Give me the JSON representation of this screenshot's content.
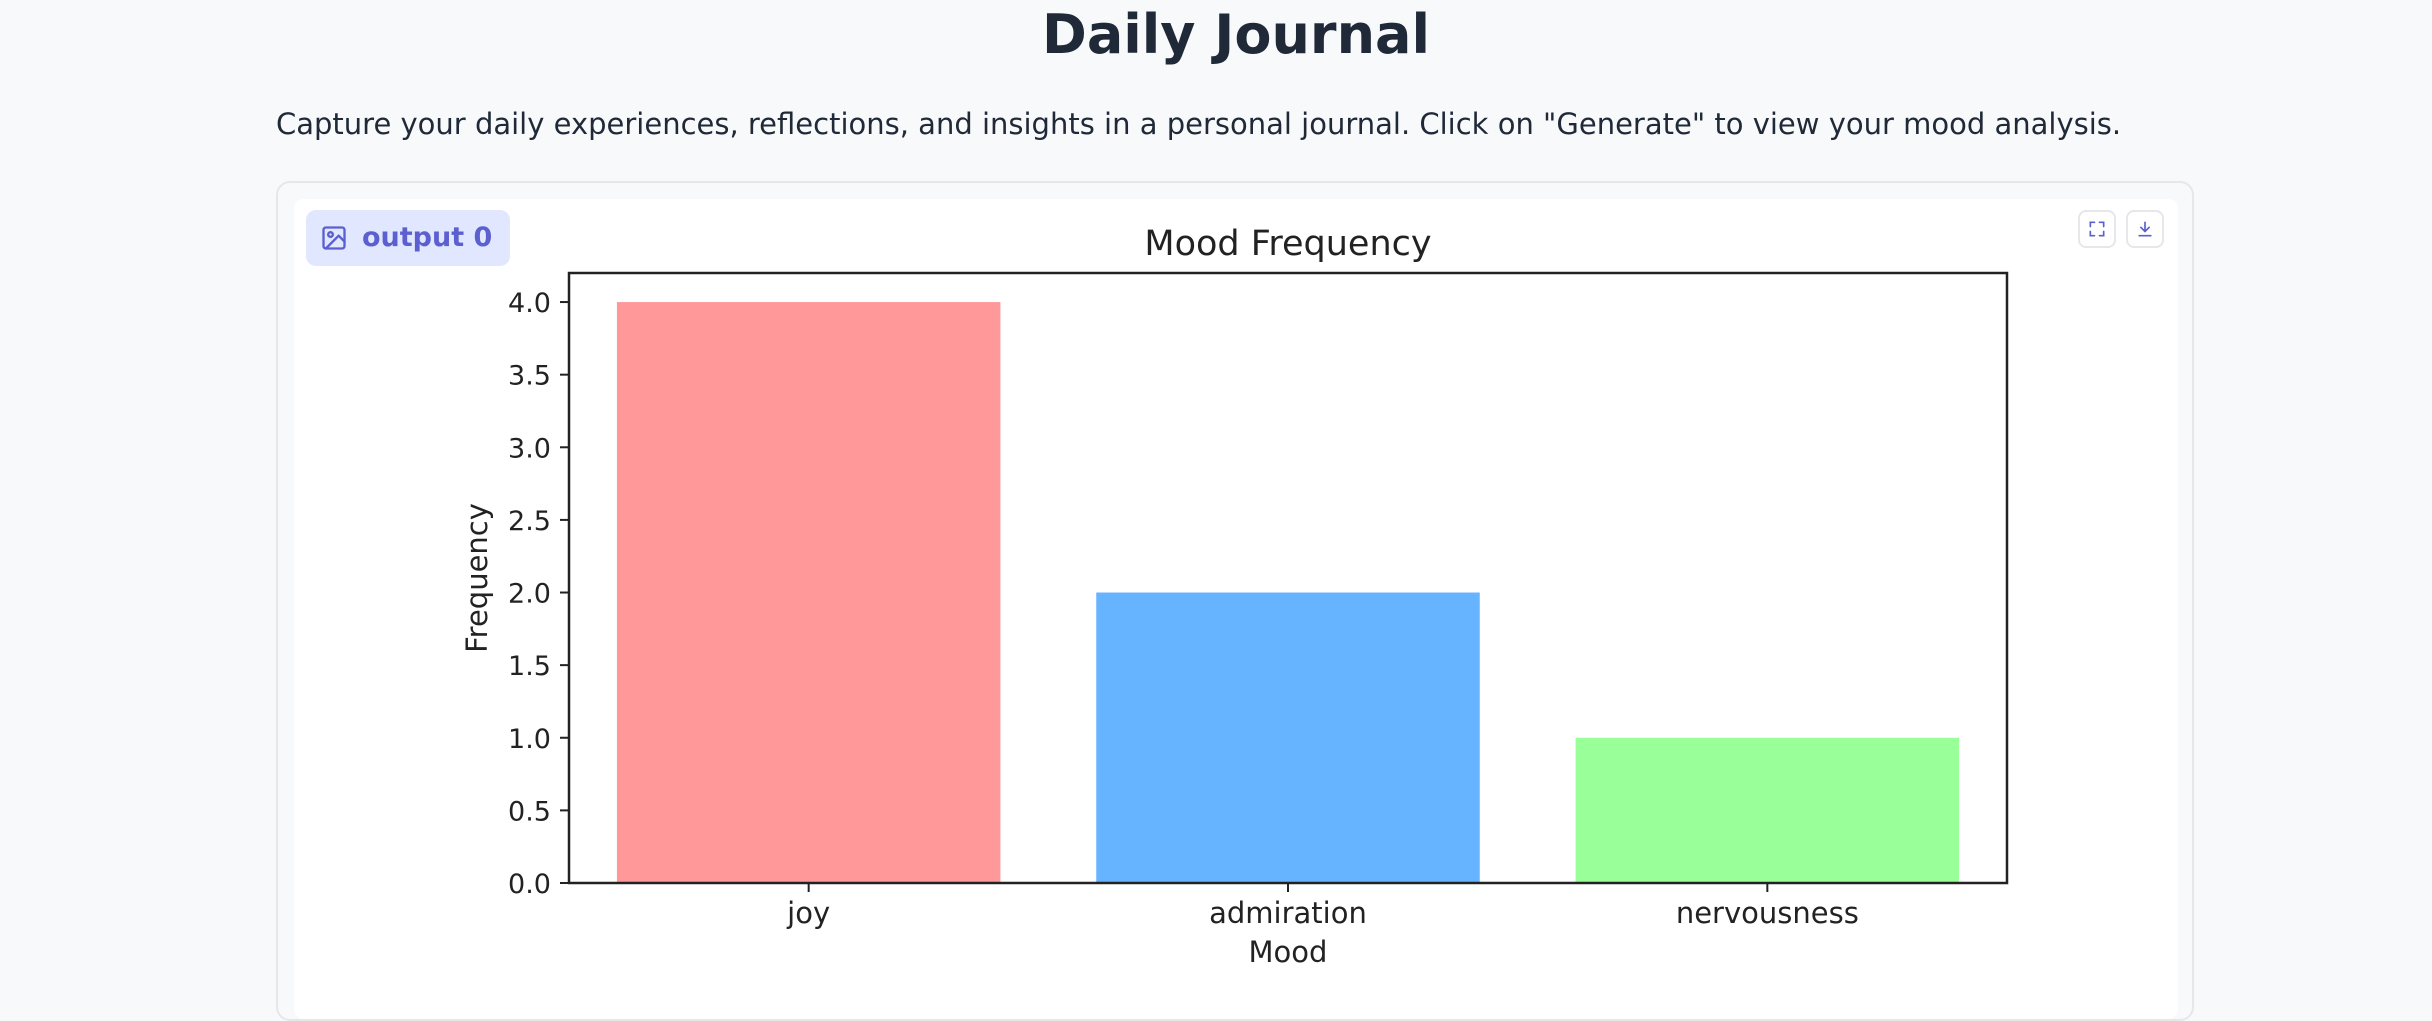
{
  "page": {
    "title": "Daily Journal",
    "description": "Capture your daily experiences, reflections, and insights in a personal journal. Click on \"Generate\" to view your mood analysis."
  },
  "output": {
    "label": "output 0",
    "label_icon": "image-icon",
    "tools": [
      {
        "name": "fullscreen-icon"
      },
      {
        "name": "download-icon"
      }
    ]
  },
  "colors": {
    "accent": "#5b5fcf",
    "accent_bg": "#e0e7ff"
  },
  "chart_data": {
    "type": "bar",
    "title": "Mood Frequency",
    "xlabel": "Mood",
    "ylabel": "Frequency",
    "categories": [
      "joy",
      "admiration",
      "nervousness"
    ],
    "values": [
      4,
      2,
      1
    ],
    "colors": [
      "#ff9999",
      "#66b3ff",
      "#99ff99"
    ],
    "ylim": [
      0,
      4.2
    ],
    "yticks": [
      "0.0",
      "0.5",
      "1.0",
      "1.5",
      "2.0",
      "2.5",
      "3.0",
      "3.5",
      "4.0"
    ],
    "grid": false,
    "legend": false
  }
}
